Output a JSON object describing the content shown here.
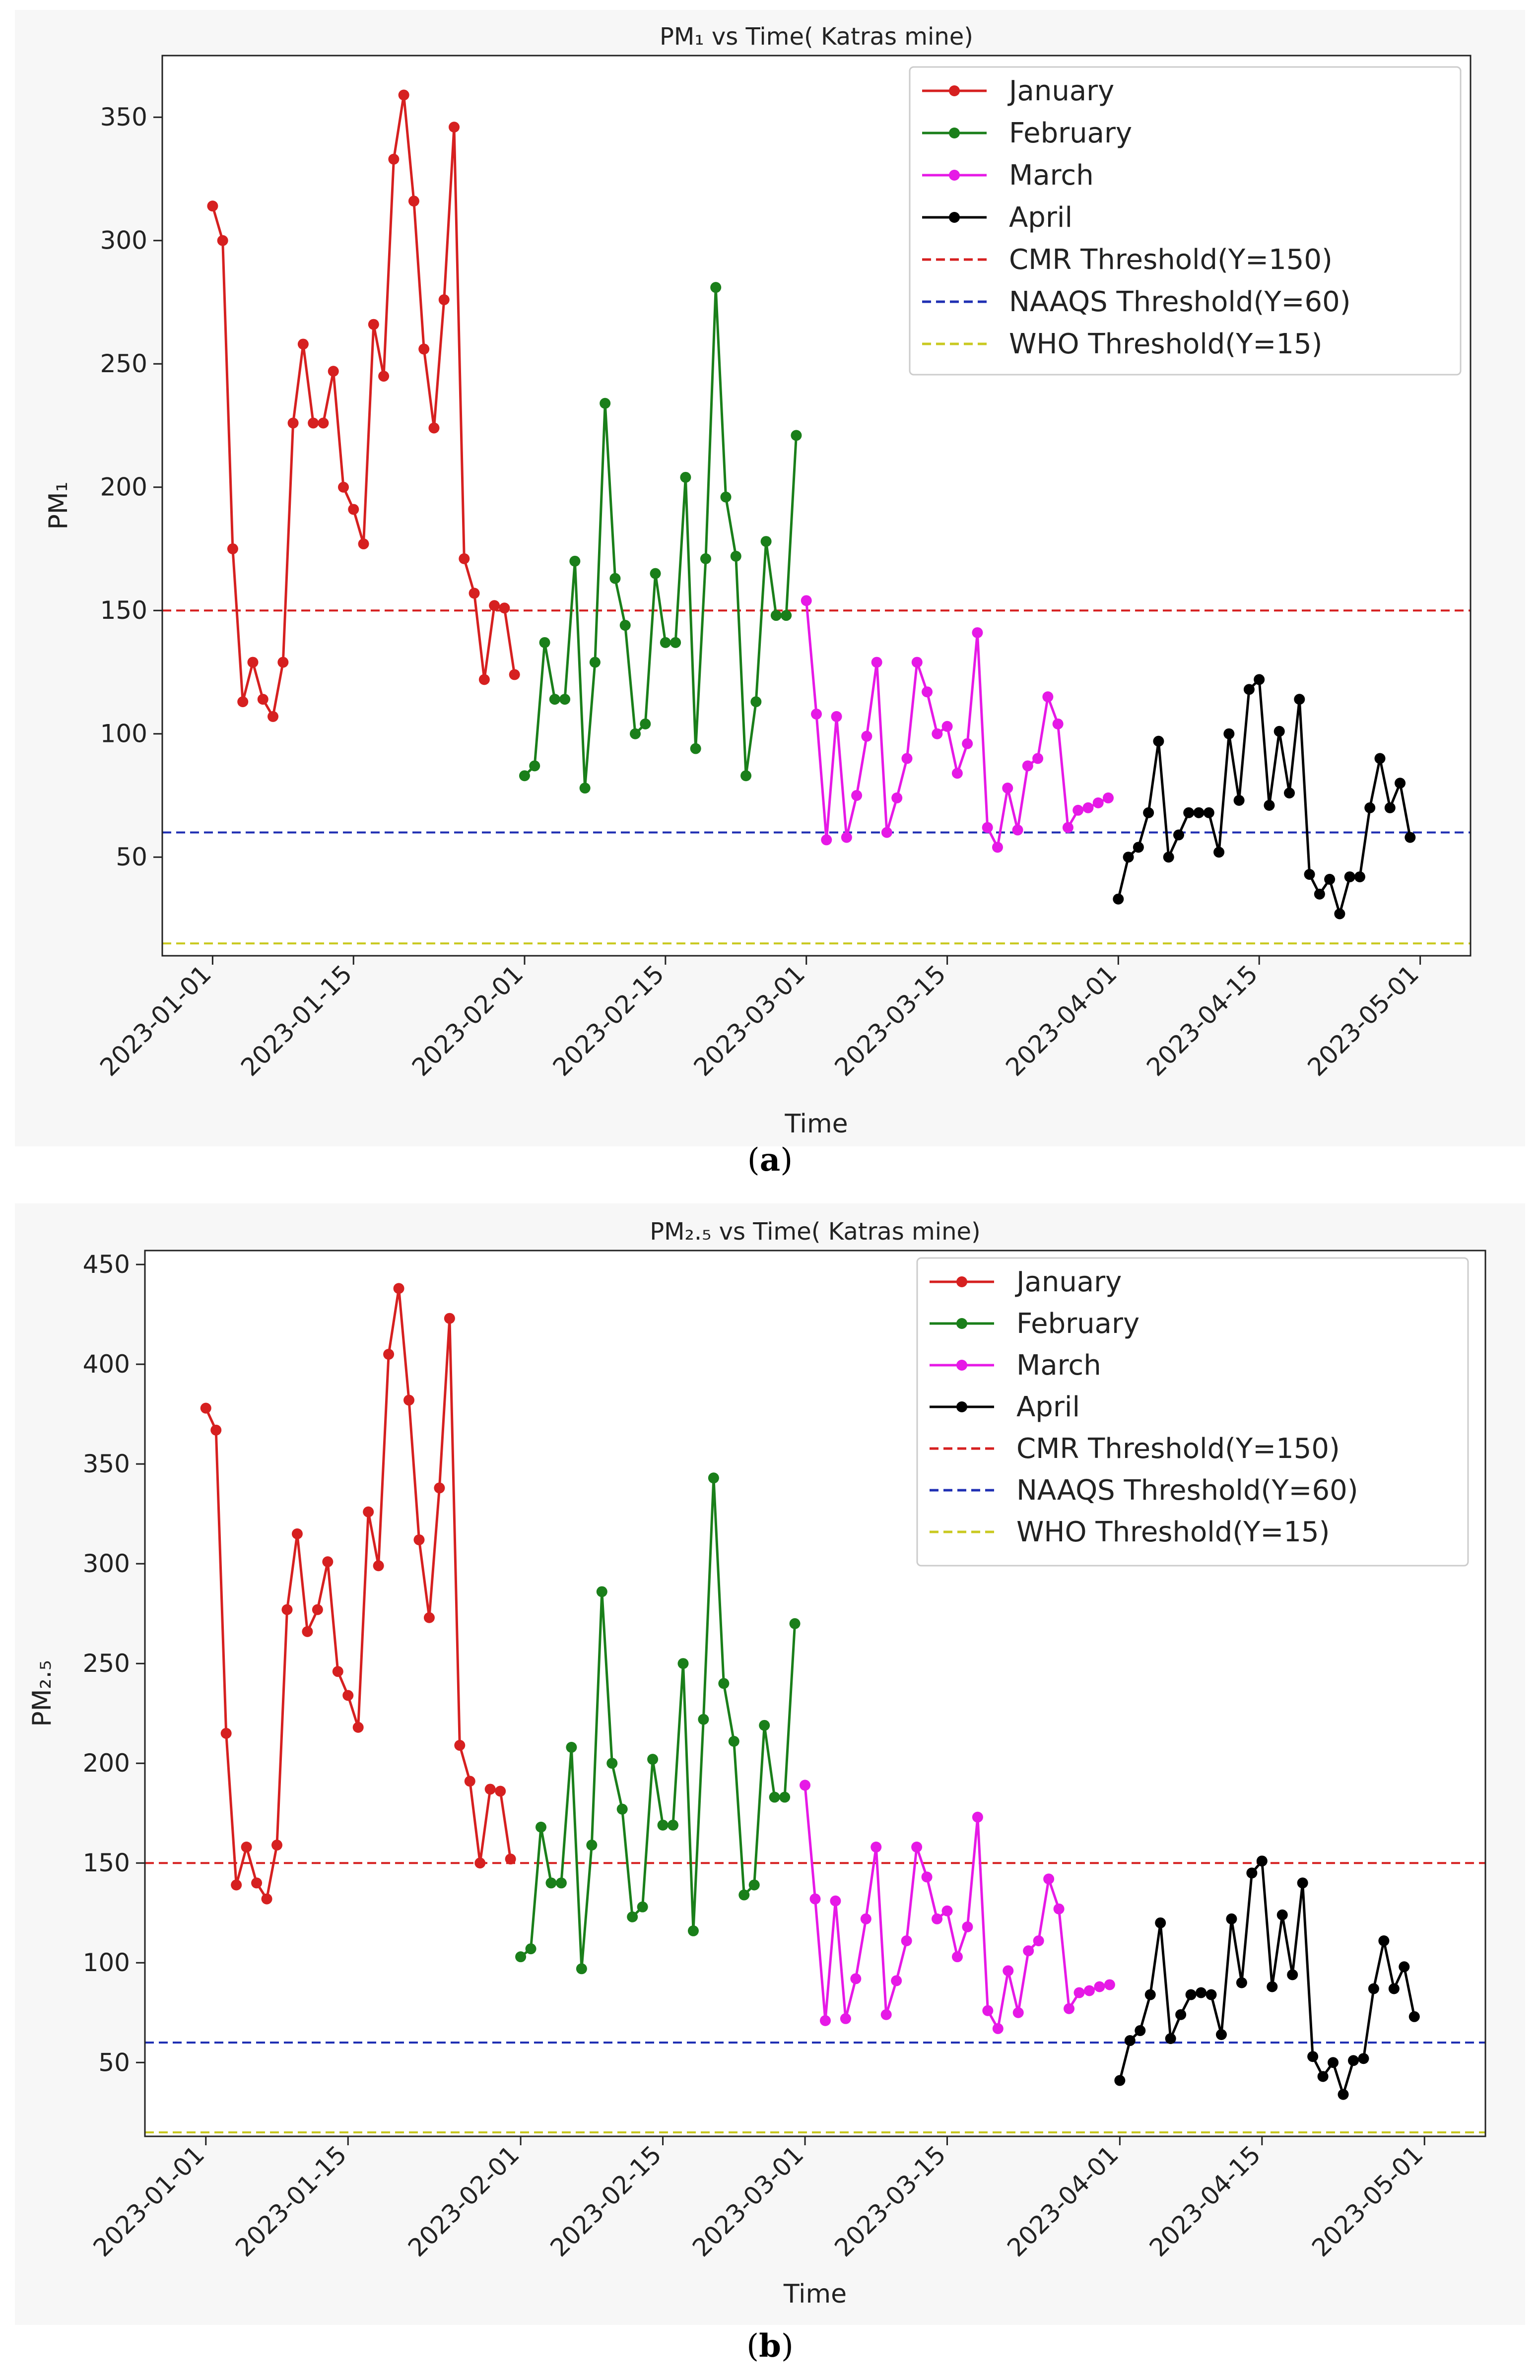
{
  "chart_data": [
    {
      "type": "line",
      "panel_label": "a",
      "title": "PM₁ vs Time( Katras mine)",
      "xlabel": "Time",
      "ylabel": "PM₁",
      "xlim": [
        -5,
        125
      ],
      "ylim": [
        10,
        375
      ],
      "yticks": [
        50,
        100,
        150,
        200,
        250,
        300,
        350
      ],
      "xticks": [
        {
          "label": "2023-01-01",
          "day": 0
        },
        {
          "label": "2023-01-15",
          "day": 14
        },
        {
          "label": "2023-02-01",
          "day": 31
        },
        {
          "label": "2023-02-15",
          "day": 45
        },
        {
          "label": "2023-03-01",
          "day": 59
        },
        {
          "label": "2023-03-15",
          "day": 73
        },
        {
          "label": "2023-04-01",
          "day": 90
        },
        {
          "label": "2023-04-15",
          "day": 104
        },
        {
          "label": "2023-05-01",
          "day": 120
        }
      ],
      "series": [
        {
          "name": "January",
          "color": "#d62020",
          "start_day": 0,
          "values": [
            314,
            300,
            175,
            113,
            129,
            114,
            107,
            129,
            226,
            258,
            226,
            226,
            247,
            200,
            191,
            177,
            266,
            245,
            333,
            359,
            316,
            256,
            224,
            276,
            346,
            171,
            157,
            122,
            152,
            151,
            124
          ]
        },
        {
          "name": "February",
          "color": "#1a7f1a",
          "start_day": 31,
          "values": [
            83,
            87,
            137,
            114,
            114,
            170,
            78,
            129,
            234,
            163,
            144,
            100,
            104,
            165,
            137,
            137,
            204,
            94,
            171,
            281,
            196,
            172,
            83,
            113,
            178,
            148,
            148,
            221
          ]
        },
        {
          "name": "March",
          "color": "#e619e6",
          "start_day": 59,
          "values": [
            154,
            108,
            57,
            107,
            58,
            75,
            99,
            129,
            60,
            74,
            90,
            129,
            117,
            100,
            103,
            84,
            96,
            141,
            62,
            54,
            78,
            61,
            87,
            90,
            115,
            104,
            62,
            69,
            70,
            72,
            74
          ]
        },
        {
          "name": "April",
          "color": "#000000",
          "start_day": 90,
          "values": [
            33,
            50,
            54,
            68,
            97,
            50,
            59,
            68,
            68,
            68,
            52,
            100,
            73,
            118,
            122,
            71,
            101,
            76,
            114,
            43,
            35,
            41,
            27,
            42,
            42,
            70,
            90,
            70,
            80,
            58
          ]
        }
      ],
      "thresholds": [
        {
          "name": "CMR Threshold(Y=150)",
          "y": 150,
          "color": "#d62020"
        },
        {
          "name": "NAAQS Threshold(Y=60)",
          "y": 60,
          "color": "#1f2fb3"
        },
        {
          "name": "WHO Threshold(Y=15)",
          "y": 15,
          "color": "#c9c920"
        }
      ],
      "legend_position": "top-right"
    },
    {
      "type": "line",
      "panel_label": "b",
      "title": "PM₂.₅ vs Time( Katras mine)",
      "xlabel": "Time",
      "ylabel": "PM₂.₅",
      "xlim": [
        -6,
        126
      ],
      "ylim": [
        13,
        457
      ],
      "yticks": [
        50,
        100,
        150,
        200,
        250,
        300,
        350,
        400,
        450
      ],
      "xticks": [
        {
          "label": "2023-01-01",
          "day": 0
        },
        {
          "label": "2023-01-15",
          "day": 14
        },
        {
          "label": "2023-02-01",
          "day": 31
        },
        {
          "label": "2023-02-15",
          "day": 45
        },
        {
          "label": "2023-03-01",
          "day": 59
        },
        {
          "label": "2023-03-15",
          "day": 73
        },
        {
          "label": "2023-04-01",
          "day": 90
        },
        {
          "label": "2023-04-15",
          "day": 104
        },
        {
          "label": "2023-05-01",
          "day": 120
        }
      ],
      "series": [
        {
          "name": "January",
          "color": "#d62020",
          "start_day": 0,
          "values": [
            378,
            367,
            215,
            139,
            158,
            140,
            132,
            159,
            277,
            315,
            266,
            277,
            301,
            246,
            234,
            218,
            326,
            299,
            405,
            438,
            382,
            312,
            273,
            338,
            423,
            209,
            191,
            150,
            187,
            186,
            152
          ]
        },
        {
          "name": "February",
          "color": "#1a7f1a",
          "start_day": 31,
          "values": [
            103,
            107,
            168,
            140,
            140,
            208,
            97,
            159,
            286,
            200,
            177,
            123,
            128,
            202,
            169,
            169,
            250,
            116,
            222,
            343,
            240,
            211,
            134,
            139,
            219,
            183,
            183,
            270
          ]
        },
        {
          "name": "March",
          "color": "#e619e6",
          "start_day": 59,
          "values": [
            189,
            132,
            71,
            131,
            72,
            92,
            122,
            158,
            74,
            91,
            111,
            158,
            143,
            122,
            126,
            103,
            118,
            173,
            76,
            67,
            96,
            75,
            106,
            111,
            142,
            127,
            77,
            85,
            86,
            88,
            89
          ]
        },
        {
          "name": "April",
          "color": "#000000",
          "start_day": 90,
          "values": [
            41,
            61,
            66,
            84,
            120,
            62,
            74,
            84,
            85,
            84,
            64,
            122,
            90,
            145,
            151,
            88,
            124,
            94,
            140,
            53,
            43,
            50,
            34,
            51,
            52,
            87,
            111,
            87,
            98,
            73
          ]
        }
      ],
      "thresholds": [
        {
          "name": "CMR Threshold(Y=150)",
          "y": 150,
          "color": "#d62020"
        },
        {
          "name": "NAAQS Threshold(Y=60)",
          "y": 60,
          "color": "#1f2fb3"
        },
        {
          "name": "WHO Threshold(Y=15)",
          "y": 15,
          "color": "#c9c920"
        }
      ],
      "legend_position": "top-right"
    }
  ],
  "captions": {
    "a": "(a)",
    "b": "(b)"
  }
}
